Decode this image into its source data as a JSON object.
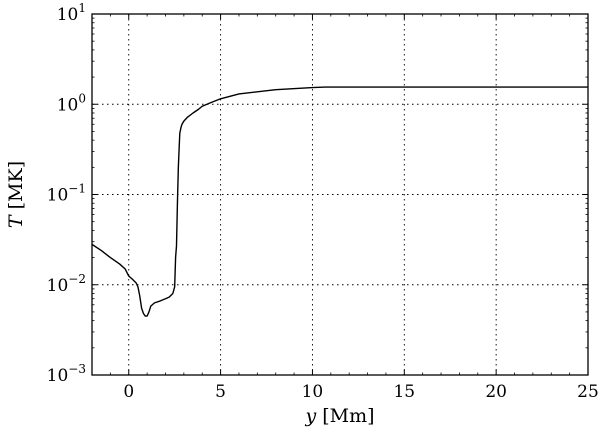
{
  "chart_data": {
    "type": "line",
    "title": "",
    "xlabel": {
      "italic": "y",
      "unit": "[Mm]"
    },
    "ylabel": {
      "italic": "T",
      "unit": "[MK]"
    },
    "xscale": "linear",
    "yscale": "log",
    "xlim": [
      -2,
      25
    ],
    "ylim": [
      0.001,
      10
    ],
    "grid": true,
    "grid_style": "dotted",
    "legend": "none",
    "x_ticks": [
      0,
      5,
      10,
      15,
      20,
      25
    ],
    "x_tick_labels": [
      "0",
      "5",
      "10",
      "15",
      "20",
      "25"
    ],
    "y_ticks": [
      0.001,
      0.01,
      0.1,
      1,
      10
    ],
    "y_tick_labels": [
      {
        "base": "10",
        "exp": "−3"
      },
      {
        "base": "10",
        "exp": "−2"
      },
      {
        "base": "10",
        "exp": "−1"
      },
      {
        "base": "10",
        "exp": "0"
      },
      {
        "base": "10",
        "exp": "1"
      }
    ],
    "series": [
      {
        "color": "#000000",
        "x": [
          -2.0,
          -1.5,
          -1.0,
          -0.5,
          -0.2,
          0.0,
          0.2,
          0.4,
          0.5,
          0.6,
          0.7,
          0.8,
          0.9,
          1.0,
          1.1,
          1.2,
          1.4,
          1.7,
          2.0,
          2.2,
          2.4,
          2.5,
          2.55,
          2.6,
          2.65,
          2.7,
          2.75,
          2.78,
          2.8,
          2.85,
          2.9,
          3.0,
          3.2,
          3.5,
          3.8,
          4.0,
          4.5,
          5.0,
          6.0,
          8.0,
          10.0,
          10.7,
          12.0,
          15.0,
          20.0,
          25.0
        ],
        "y": [
          0.028,
          0.024,
          0.02,
          0.017,
          0.015,
          0.0125,
          0.0115,
          0.0105,
          0.0095,
          0.0075,
          0.0055,
          0.0048,
          0.0045,
          0.0045,
          0.005,
          0.0058,
          0.0063,
          0.0066,
          0.007,
          0.0073,
          0.008,
          0.0095,
          0.02,
          0.027,
          0.08,
          0.2,
          0.35,
          0.48,
          0.5,
          0.56,
          0.6,
          0.65,
          0.72,
          0.8,
          0.88,
          0.95,
          1.05,
          1.15,
          1.3,
          1.45,
          1.53,
          1.55,
          1.55,
          1.55,
          1.55,
          1.55
        ]
      }
    ]
  }
}
